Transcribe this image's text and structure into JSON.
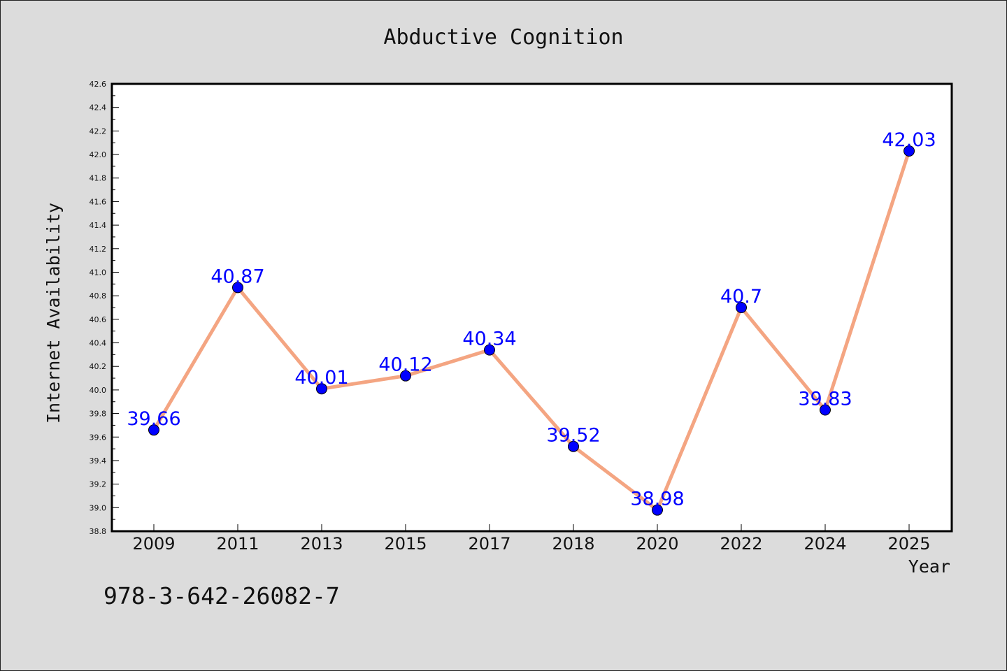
{
  "chart_data": {
    "type": "line",
    "title": "Abductive Cognition",
    "xlabel": "Year",
    "ylabel": "Internet Availability",
    "categories": [
      "2009",
      "2011",
      "2013",
      "2015",
      "2017",
      "2018",
      "2020",
      "2022",
      "2024",
      "2025"
    ],
    "series": [
      {
        "values": [
          39.66,
          40.87,
          40.01,
          40.12,
          40.34,
          39.52,
          38.98,
          40.7,
          39.83,
          42.03
        ],
        "labels": [
          "39.66",
          "40.87",
          "40.01",
          "40.12",
          "40.34",
          "39.52",
          "38.98",
          "40.7",
          "39.83",
          "42.03"
        ]
      }
    ],
    "ylim": [
      38.8,
      42.6
    ],
    "yticks": [
      "38.8",
      "39.0",
      "39.2",
      "39.4",
      "39.6",
      "39.8",
      "40.0",
      "40.2",
      "40.4",
      "40.6",
      "40.8",
      "41.0",
      "41.2",
      "41.4",
      "41.6",
      "41.8",
      "42.0",
      "42.2",
      "42.4",
      "42.6"
    ],
    "grid": false,
    "line_color": "#f4a582",
    "marker_color": "#0000ff",
    "label_color": "#0000ff"
  },
  "footer": {
    "isbn": "978-3-642-26082-7"
  }
}
